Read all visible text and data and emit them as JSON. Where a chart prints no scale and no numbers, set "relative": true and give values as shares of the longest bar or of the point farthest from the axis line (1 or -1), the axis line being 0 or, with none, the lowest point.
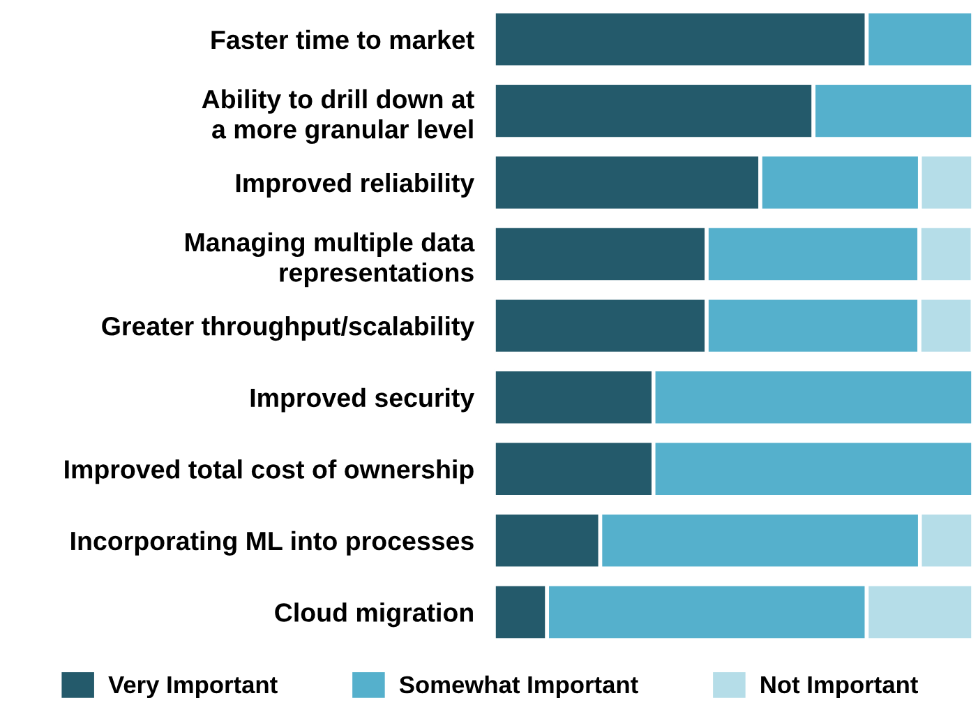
{
  "chart_data": {
    "type": "bar",
    "orientation": "horizontal",
    "stacked": true,
    "relative": true,
    "legend": "bottom",
    "grid": false,
    "categories": [
      "Faster time to market",
      "Ability to drill down at\na more granular level",
      "Improved reliability",
      "Managing multiple data\nrepresentations",
      "Greater throughput/scalability",
      "Improved security",
      "Improved total cost of ownership",
      "Incorporating ML into processes",
      "Cloud migration"
    ],
    "series": [
      {
        "name": "Very Important",
        "color": "#245a6b",
        "values": [
          0.778,
          0.667,
          0.556,
          0.444,
          0.444,
          0.333,
          0.333,
          0.222,
          0.111
        ]
      },
      {
        "name": "Somewhat Important",
        "color": "#55b0cc",
        "values": [
          0.222,
          0.333,
          0.333,
          0.444,
          0.444,
          0.667,
          0.667,
          0.667,
          0.667
        ]
      },
      {
        "name": "Not Important",
        "color": "#b5dde8",
        "values": [
          0,
          0,
          0.111,
          0.111,
          0.111,
          0,
          0,
          0.111,
          0.222
        ]
      }
    ]
  }
}
